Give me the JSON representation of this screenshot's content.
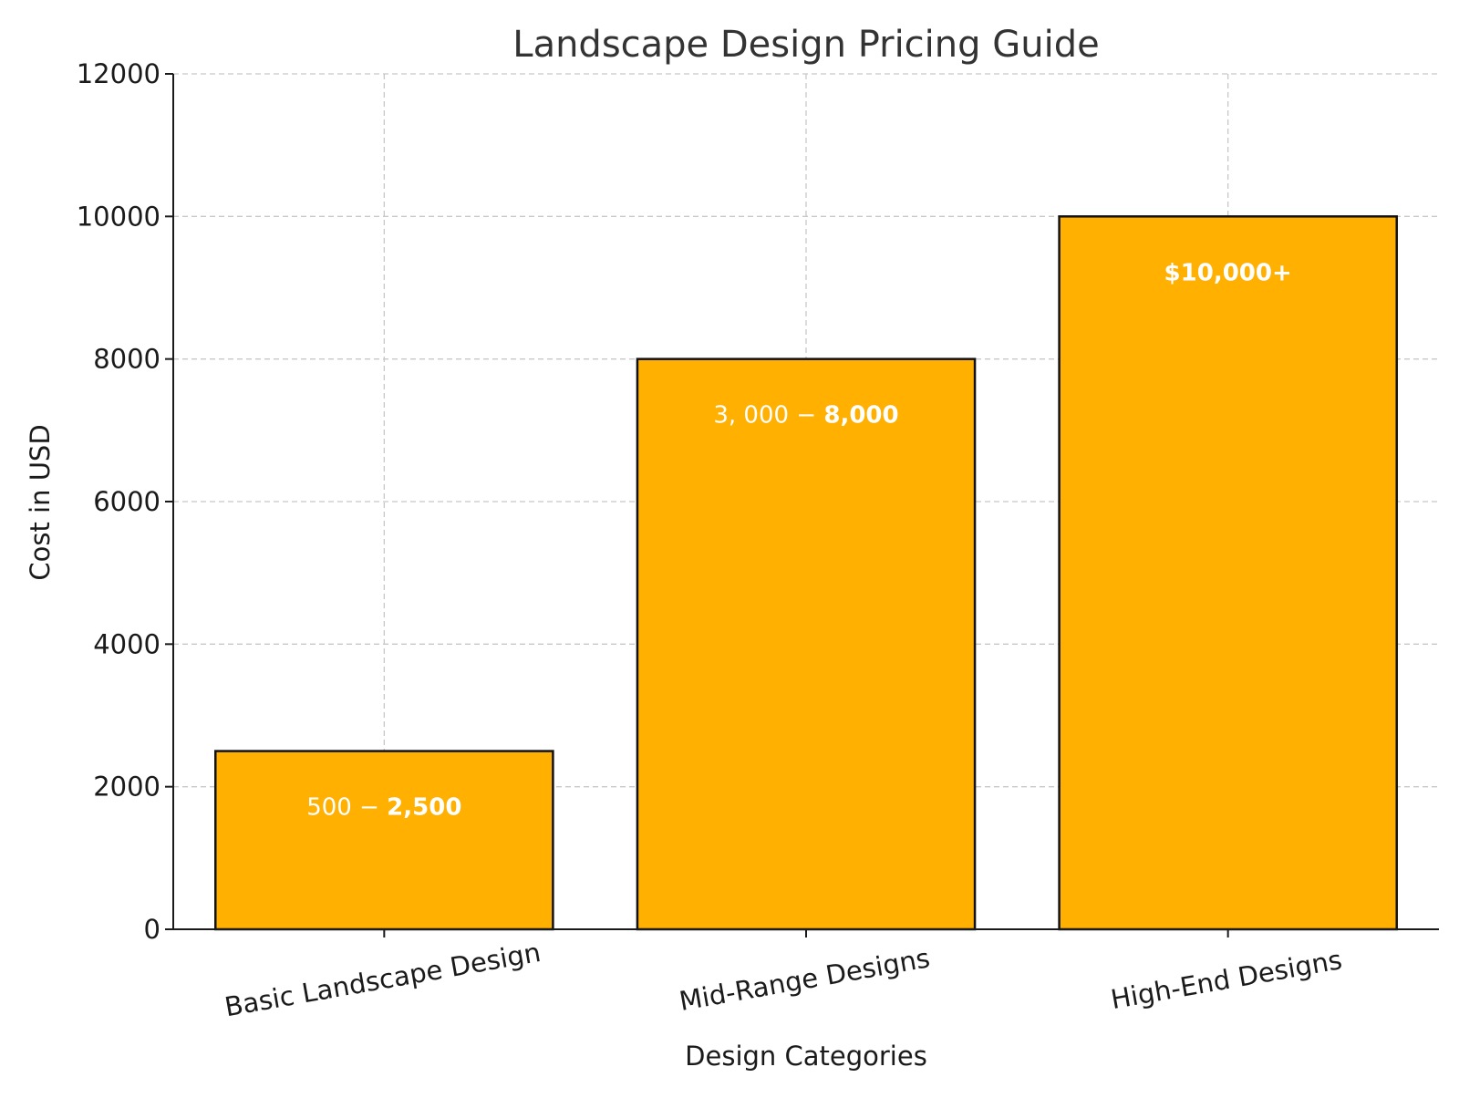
{
  "chart_data": {
    "type": "bar",
    "title": "Landscape Design Pricing Guide",
    "xlabel": "Design Categories",
    "ylabel": "Cost in USD",
    "categories": [
      "Basic Landscape Design",
      "Mid-Range Designs",
      "High-End Designs"
    ],
    "values": [
      2500,
      8000,
      10000
    ],
    "bar_labels": [
      {
        "regular": "500 − ",
        "bold": "2,500"
      },
      {
        "regular": "3, 000 − ",
        "bold": "8,000"
      },
      {
        "regular": "",
        "bold": "$10,000+"
      }
    ],
    "ylim": [
      0,
      12000
    ],
    "yticks": [
      "0",
      "2000",
      "4000",
      "6000",
      "8000",
      "10000",
      "12000"
    ],
    "grid": true,
    "colors": {
      "bar": "#ffb000",
      "edge": "#111111"
    }
  }
}
